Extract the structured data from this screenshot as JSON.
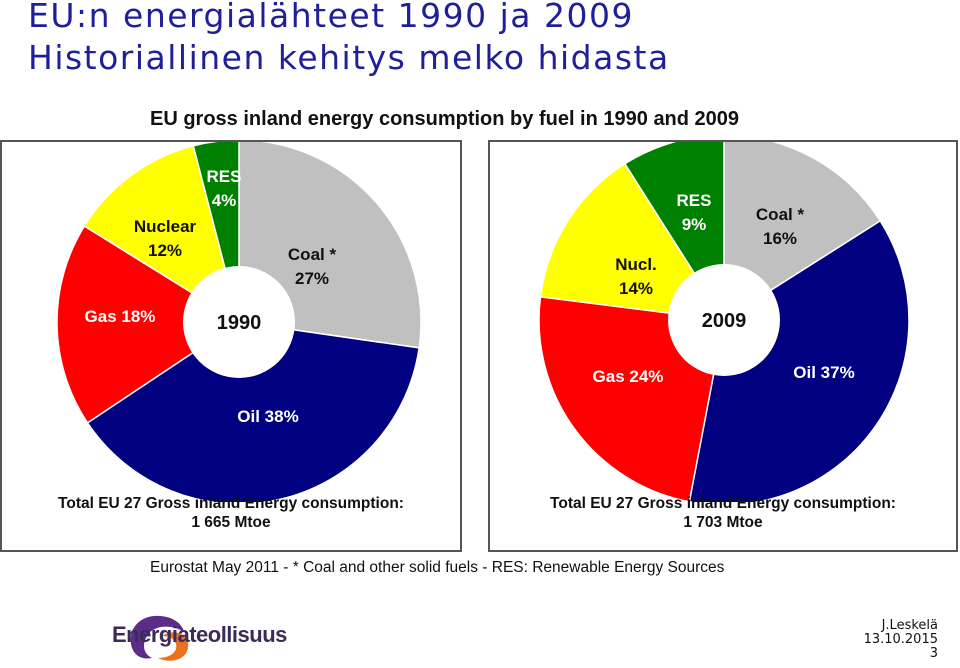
{
  "slide": {
    "title_line1": "EU:n energialähteet 1990 ja 2009",
    "title_line2": "Historiallinen kehitys melko hidasta"
  },
  "chart_data": [
    {
      "type": "pie",
      "title": "EU gross inland energy consumption by fuel in 1990 and 2009",
      "center_label": "1990",
      "slices": [
        {
          "name": "Coal *",
          "label": "Coal *",
          "value_label": "27%",
          "value": 27,
          "color": "#c0c0c0"
        },
        {
          "name": "Oil",
          "label": "Oil 38%",
          "value_label": "",
          "value": 38,
          "color": "#000080"
        },
        {
          "name": "Gas",
          "label": "Gas 18%",
          "value_label": "",
          "value": 18,
          "color": "#ff0000"
        },
        {
          "name": "Nuclear",
          "label": "Nuclear",
          "value_label": "12%",
          "value": 12,
          "color": "#ffff00"
        },
        {
          "name": "RES",
          "label": "RES",
          "value_label": "4%",
          "value": 4,
          "color": "#008000"
        }
      ],
      "total_line1": "Total EU 27 Gross inland Energy consumption:",
      "total_line2": "1 665 Mtoe"
    },
    {
      "type": "pie",
      "title": "EU gross inland energy consumption by fuel in 1990 and 2009",
      "center_label": "2009",
      "slices": [
        {
          "name": "Coal *",
          "label": "Coal *",
          "value_label": "16%",
          "value": 16,
          "color": "#c0c0c0"
        },
        {
          "name": "Oil",
          "label": "Oil 37%",
          "value_label": "",
          "value": 37,
          "color": "#000080"
        },
        {
          "name": "Gas",
          "label": "Gas 24%",
          "value_label": "",
          "value": 24,
          "color": "#ff0000"
        },
        {
          "name": "Nucl.",
          "label": "Nucl.",
          "value_label": "14%",
          "value": 14,
          "color": "#ffff00"
        },
        {
          "name": "RES",
          "label": "RES",
          "value_label": "9%",
          "value": 9,
          "color": "#008000"
        }
      ],
      "total_line1": "Total EU 27 Gross inland Energy consumption:",
      "total_line2": "1 703 Mtoe"
    }
  ],
  "chart_header": "EU gross inland energy consumption by fuel in 1990 and 2009",
  "source_note": "Eurostat May 2011 - * Coal and other solid fuels - RES: Renewable Energy Sources",
  "footer": {
    "brand": "Energiateollisuus",
    "author": "J.Leskelä",
    "date": "13.10.2015",
    "page": "3",
    "logo_colors": {
      "purple": "#5b2d86",
      "orange": "#e8731a"
    }
  }
}
